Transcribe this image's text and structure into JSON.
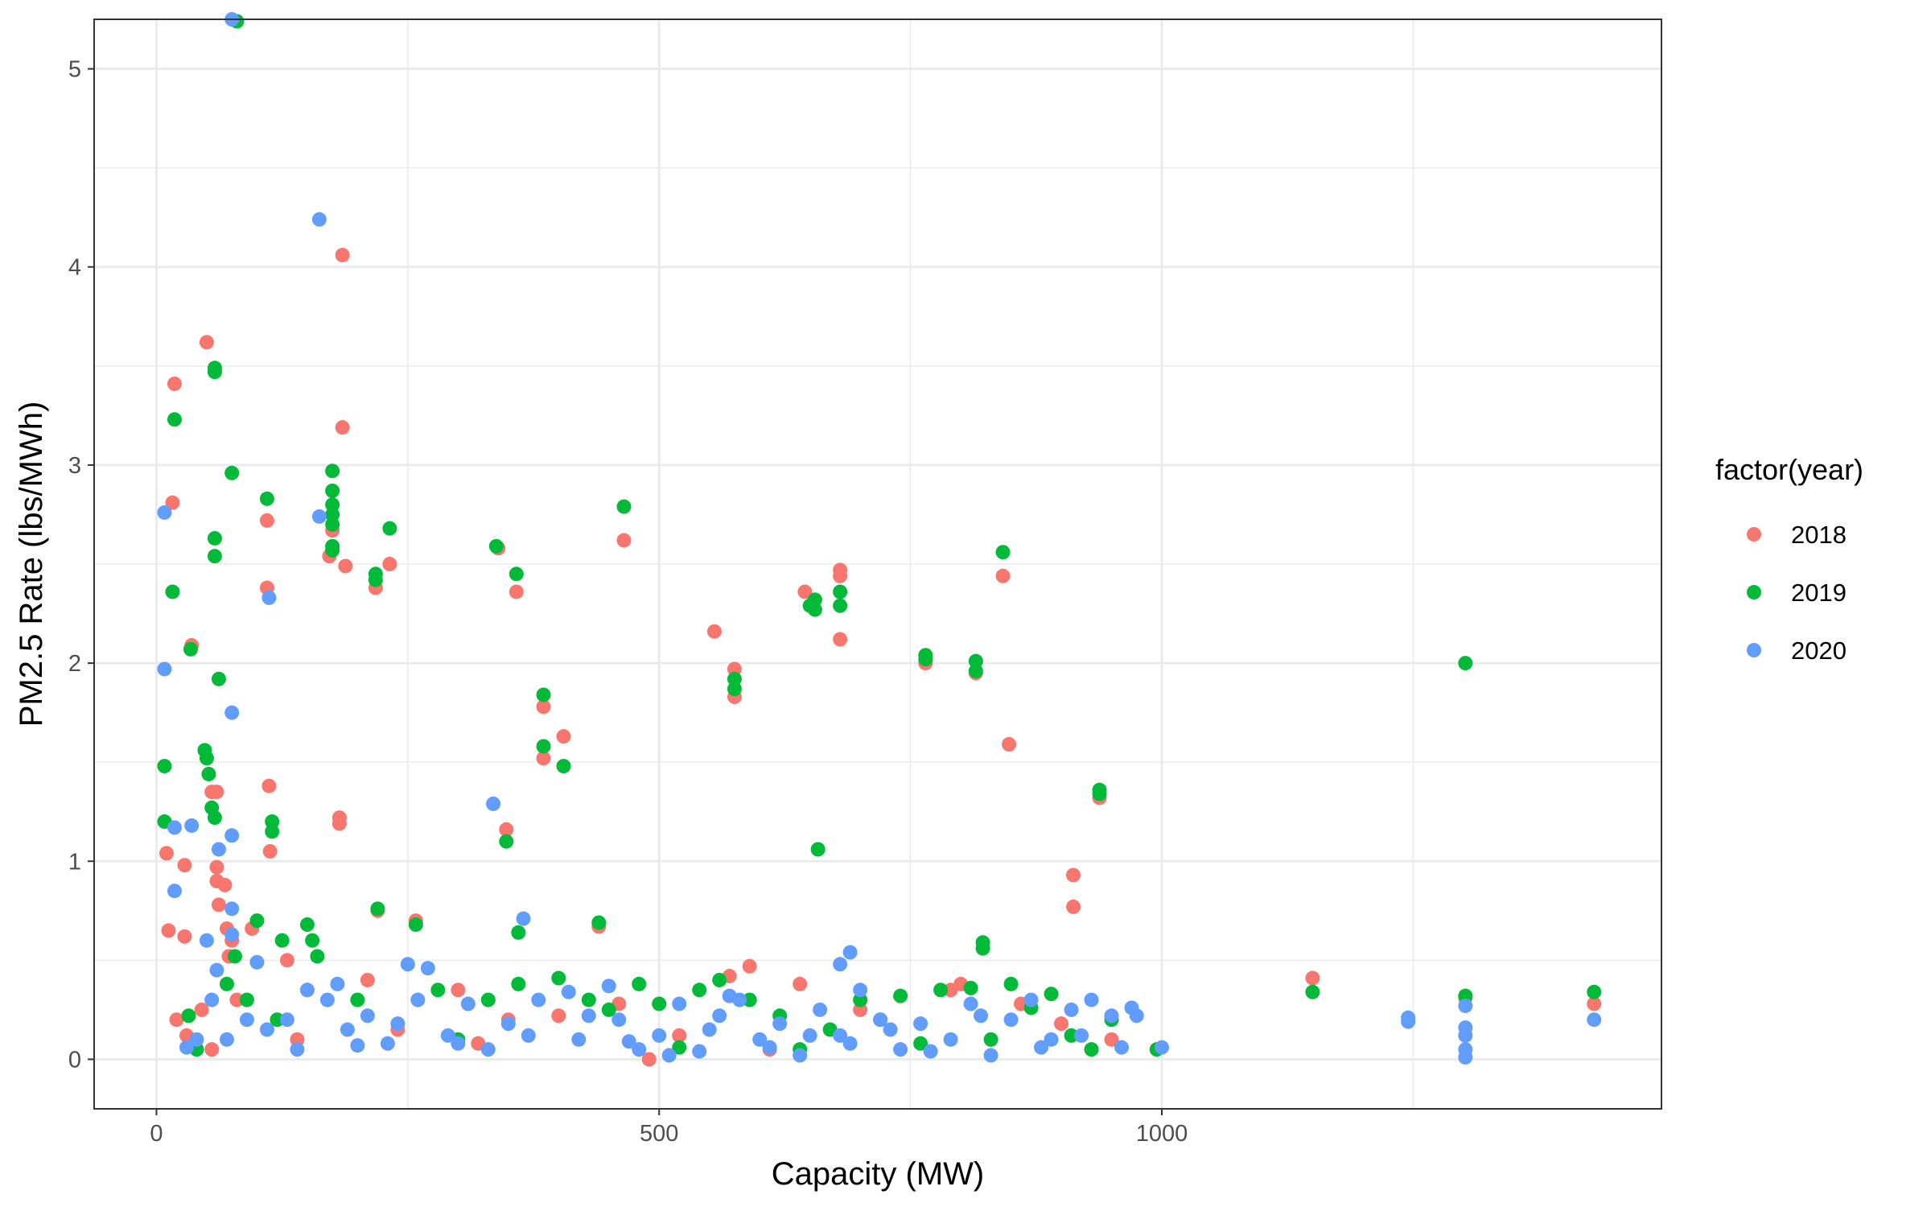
{
  "chart_data": {
    "type": "scatter",
    "title": "",
    "xlabel": "Capacity (MW)",
    "ylabel": "PM2.5 Rate (lbs/MWh)",
    "xlim": [
      -62,
      1497
    ],
    "ylim": [
      -0.25,
      5.25
    ],
    "x_ticks": [
      0,
      500,
      1000
    ],
    "y_ticks": [
      0,
      1,
      2,
      3,
      4,
      5
    ],
    "grid": true,
    "legend": {
      "title": "factor(year)",
      "position": "right"
    },
    "colors": {
      "2018": "#F8766D",
      "2019": "#00BA38",
      "2020": "#619CFF"
    },
    "series": [
      {
        "name": "2018",
        "color": "#F8766D",
        "points": [
          [
            10,
            1.04
          ],
          [
            12,
            0.65
          ],
          [
            18,
            3.41
          ],
          [
            16,
            2.81
          ],
          [
            28,
            0.98
          ],
          [
            28,
            0.62
          ],
          [
            35,
            2.09
          ],
          [
            50,
            3.62
          ],
          [
            55,
            1.35
          ],
          [
            60,
            1.35
          ],
          [
            60,
            0.97
          ],
          [
            60,
            0.9
          ],
          [
            62,
            0.78
          ],
          [
            68,
            0.88
          ],
          [
            70,
            0.66
          ],
          [
            72,
            0.52
          ],
          [
            75,
            0.6
          ],
          [
            110,
            2.72
          ],
          [
            110,
            2.38
          ],
          [
            112,
            1.38
          ],
          [
            113,
            1.05
          ],
          [
            185,
            4.06
          ],
          [
            185,
            3.19
          ],
          [
            182,
            1.22
          ],
          [
            182,
            1.19
          ],
          [
            175,
            2.67
          ],
          [
            172,
            2.54
          ],
          [
            188,
            2.49
          ],
          [
            218,
            2.38
          ],
          [
            232,
            2.5
          ],
          [
            220,
            0.75
          ],
          [
            258,
            0.7
          ],
          [
            340,
            2.58
          ],
          [
            358,
            2.36
          ],
          [
            348,
            1.16
          ],
          [
            385,
            1.78
          ],
          [
            385,
            1.52
          ],
          [
            405,
            1.63
          ],
          [
            440,
            0.67
          ],
          [
            465,
            2.62
          ],
          [
            555,
            2.16
          ],
          [
            575,
            1.97
          ],
          [
            575,
            1.83
          ],
          [
            645,
            2.36
          ],
          [
            680,
            2.47
          ],
          [
            680,
            2.44
          ],
          [
            680,
            2.12
          ],
          [
            765,
            2.0
          ],
          [
            815,
            1.95
          ],
          [
            842,
            2.44
          ],
          [
            848,
            1.59
          ],
          [
            912,
            0.93
          ],
          [
            912,
            0.77
          ],
          [
            938,
            1.32
          ],
          [
            1150,
            0.41
          ],
          [
            1302,
            0.31
          ],
          [
            1430,
            0.28
          ],
          [
            590,
            0.47
          ],
          [
            640,
            0.38
          ],
          [
            570,
            0.42
          ],
          [
            460,
            0.28
          ],
          [
            300,
            0.35
          ],
          [
            210,
            0.4
          ],
          [
            240,
            0.15
          ],
          [
            150,
            0.35
          ],
          [
            130,
            0.5
          ],
          [
            95,
            0.66
          ],
          [
            80,
            0.3
          ],
          [
            45,
            0.25
          ],
          [
            20,
            0.2
          ],
          [
            30,
            0.12
          ],
          [
            55,
            0.05
          ],
          [
            140,
            0.1
          ],
          [
            320,
            0.08
          ],
          [
            350,
            0.2
          ],
          [
            400,
            0.22
          ],
          [
            490,
            0.0
          ],
          [
            520,
            0.12
          ],
          [
            610,
            0.05
          ],
          [
            700,
            0.25
          ],
          [
            790,
            0.35
          ],
          [
            800,
            0.38
          ],
          [
            860,
            0.28
          ],
          [
            900,
            0.18
          ],
          [
            950,
            0.1
          ]
        ]
      },
      {
        "name": "2019",
        "color": "#00BA38",
        "points": [
          [
            8,
            1.48
          ],
          [
            8,
            1.2
          ],
          [
            16,
            2.36
          ],
          [
            18,
            3.23
          ],
          [
            34,
            2.07
          ],
          [
            48,
            1.56
          ],
          [
            50,
            1.52
          ],
          [
            52,
            1.44
          ],
          [
            55,
            1.27
          ],
          [
            58,
            1.22
          ],
          [
            58,
            3.49
          ],
          [
            58,
            3.47
          ],
          [
            58,
            2.63
          ],
          [
            58,
            2.54
          ],
          [
            62,
            1.92
          ],
          [
            75,
            2.96
          ],
          [
            80,
            5.24
          ],
          [
            110,
            2.83
          ],
          [
            115,
            1.2
          ],
          [
            115,
            1.15
          ],
          [
            100,
            0.7
          ],
          [
            175,
            2.97
          ],
          [
            175,
            2.87
          ],
          [
            175,
            2.8
          ],
          [
            175,
            2.75
          ],
          [
            175,
            2.7
          ],
          [
            175,
            2.59
          ],
          [
            175,
            2.57
          ],
          [
            218,
            2.45
          ],
          [
            218,
            2.42
          ],
          [
            232,
            2.68
          ],
          [
            220,
            0.76
          ],
          [
            258,
            0.68
          ],
          [
            338,
            2.59
          ],
          [
            358,
            2.45
          ],
          [
            348,
            1.1
          ],
          [
            385,
            1.84
          ],
          [
            385,
            1.58
          ],
          [
            405,
            1.48
          ],
          [
            360,
            0.64
          ],
          [
            440,
            0.69
          ],
          [
            465,
            2.79
          ],
          [
            575,
            1.92
          ],
          [
            575,
            1.87
          ],
          [
            650,
            2.29
          ],
          [
            655,
            2.32
          ],
          [
            655,
            2.27
          ],
          [
            658,
            1.06
          ],
          [
            680,
            2.36
          ],
          [
            680,
            2.29
          ],
          [
            765,
            2.04
          ],
          [
            765,
            2.02
          ],
          [
            815,
            2.01
          ],
          [
            815,
            1.96
          ],
          [
            842,
            2.56
          ],
          [
            822,
            0.59
          ],
          [
            822,
            0.56
          ],
          [
            938,
            1.36
          ],
          [
            938,
            1.34
          ],
          [
            1150,
            0.34
          ],
          [
            1302,
            2.0
          ],
          [
            1302,
            0.32
          ],
          [
            1430,
            0.34
          ],
          [
            995,
            0.05
          ],
          [
            155,
            0.6
          ],
          [
            160,
            0.52
          ],
          [
            150,
            0.68
          ],
          [
            125,
            0.6
          ],
          [
            78,
            0.52
          ],
          [
            90,
            0.3
          ],
          [
            40,
            0.05
          ],
          [
            32,
            0.22
          ],
          [
            70,
            0.38
          ],
          [
            120,
            0.2
          ],
          [
            200,
            0.3
          ],
          [
            280,
            0.35
          ],
          [
            300,
            0.1
          ],
          [
            330,
            0.3
          ],
          [
            360,
            0.38
          ],
          [
            400,
            0.41
          ],
          [
            430,
            0.3
          ],
          [
            450,
            0.25
          ],
          [
            480,
            0.38
          ],
          [
            500,
            0.28
          ],
          [
            520,
            0.06
          ],
          [
            540,
            0.35
          ],
          [
            560,
            0.4
          ],
          [
            590,
            0.3
          ],
          [
            620,
            0.22
          ],
          [
            640,
            0.05
          ],
          [
            670,
            0.15
          ],
          [
            700,
            0.3
          ],
          [
            720,
            0.2
          ],
          [
            740,
            0.32
          ],
          [
            760,
            0.08
          ],
          [
            780,
            0.35
          ],
          [
            810,
            0.36
          ],
          [
            830,
            0.1
          ],
          [
            850,
            0.38
          ],
          [
            870,
            0.26
          ],
          [
            890,
            0.33
          ],
          [
            910,
            0.12
          ],
          [
            930,
            0.05
          ],
          [
            950,
            0.2
          ]
        ]
      },
      {
        "name": "2020",
        "color": "#619CFF",
        "points": [
          [
            8,
            2.76
          ],
          [
            8,
            1.97
          ],
          [
            18,
            1.17
          ],
          [
            18,
            0.85
          ],
          [
            35,
            1.18
          ],
          [
            62,
            1.06
          ],
          [
            75,
            1.13
          ],
          [
            75,
            1.75
          ],
          [
            75,
            0.76
          ],
          [
            75,
            0.63
          ],
          [
            75,
            5.25
          ],
          [
            100,
            0.49
          ],
          [
            112,
            2.33
          ],
          [
            162,
            4.24
          ],
          [
            162,
            2.74
          ],
          [
            335,
            1.29
          ],
          [
            365,
            0.71
          ],
          [
            680,
            0.48
          ],
          [
            690,
            0.54
          ],
          [
            1000,
            0.06
          ],
          [
            1245,
            0.21
          ],
          [
            1245,
            0.19
          ],
          [
            1302,
            0.27
          ],
          [
            1302,
            0.16
          ],
          [
            1302,
            0.12
          ],
          [
            1302,
            0.05
          ],
          [
            1302,
            0.01
          ],
          [
            1430,
            0.2
          ],
          [
            50,
            0.6
          ],
          [
            55,
            0.3
          ],
          [
            60,
            0.45
          ],
          [
            70,
            0.1
          ],
          [
            90,
            0.2
          ],
          [
            110,
            0.15
          ],
          [
            140,
            0.05
          ],
          [
            150,
            0.35
          ],
          [
            170,
            0.3
          ],
          [
            190,
            0.15
          ],
          [
            210,
            0.22
          ],
          [
            230,
            0.08
          ],
          [
            250,
            0.48
          ],
          [
            260,
            0.3
          ],
          [
            270,
            0.46
          ],
          [
            290,
            0.12
          ],
          [
            310,
            0.28
          ],
          [
            330,
            0.05
          ],
          [
            350,
            0.18
          ],
          [
            380,
            0.3
          ],
          [
            410,
            0.34
          ],
          [
            420,
            0.1
          ],
          [
            450,
            0.37
          ],
          [
            460,
            0.2
          ],
          [
            480,
            0.05
          ],
          [
            500,
            0.12
          ],
          [
            520,
            0.28
          ],
          [
            540,
            0.04
          ],
          [
            560,
            0.22
          ],
          [
            580,
            0.3
          ],
          [
            600,
            0.1
          ],
          [
            620,
            0.18
          ],
          [
            640,
            0.02
          ],
          [
            660,
            0.25
          ],
          [
            680,
            0.12
          ],
          [
            700,
            0.35
          ],
          [
            720,
            0.2
          ],
          [
            740,
            0.05
          ],
          [
            760,
            0.18
          ],
          [
            790,
            0.1
          ],
          [
            810,
            0.28
          ],
          [
            830,
            0.02
          ],
          [
            850,
            0.2
          ],
          [
            870,
            0.3
          ],
          [
            890,
            0.1
          ],
          [
            910,
            0.25
          ],
          [
            930,
            0.3
          ],
          [
            950,
            0.22
          ],
          [
            970,
            0.26
          ],
          [
            975,
            0.22
          ],
          [
            40,
            0.1
          ],
          [
            30,
            0.06
          ],
          [
            130,
            0.2
          ],
          [
            180,
            0.38
          ],
          [
            200,
            0.07
          ],
          [
            240,
            0.18
          ],
          [
            300,
            0.08
          ],
          [
            370,
            0.12
          ],
          [
            430,
            0.22
          ],
          [
            470,
            0.09
          ],
          [
            510,
            0.02
          ],
          [
            550,
            0.15
          ],
          [
            570,
            0.32
          ],
          [
            610,
            0.06
          ],
          [
            650,
            0.12
          ],
          [
            690,
            0.08
          ],
          [
            730,
            0.15
          ],
          [
            770,
            0.04
          ],
          [
            820,
            0.22
          ],
          [
            880,
            0.06
          ],
          [
            920,
            0.12
          ],
          [
            960,
            0.06
          ]
        ]
      }
    ]
  }
}
